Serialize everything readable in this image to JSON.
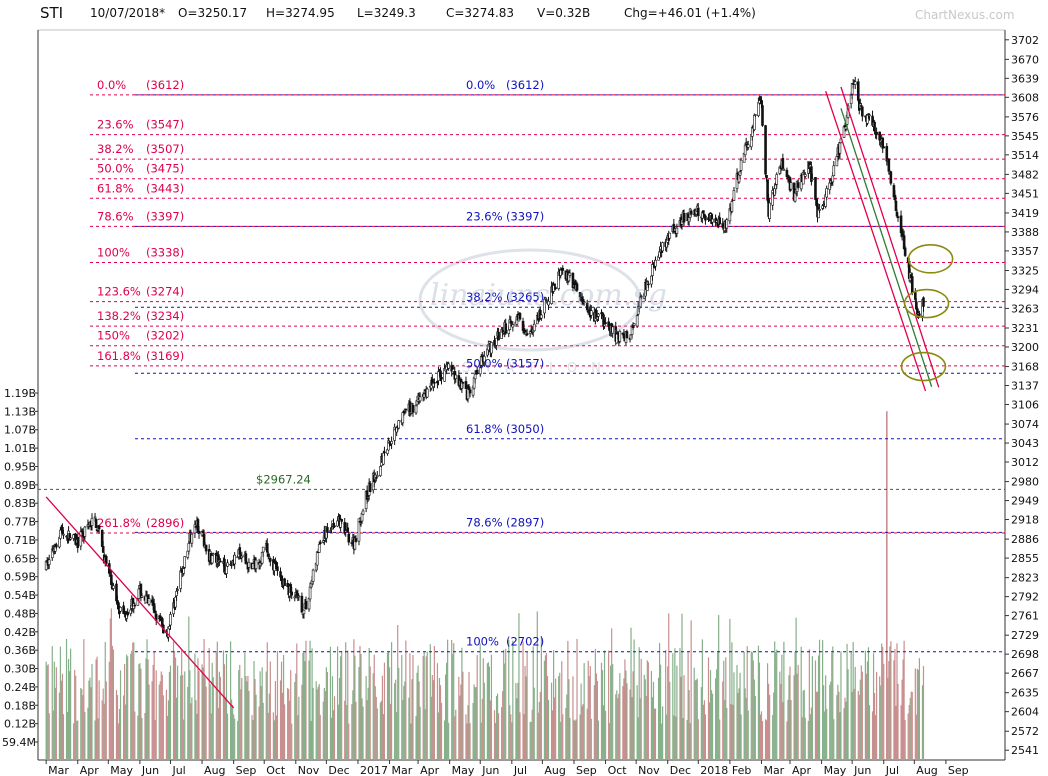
{
  "header": {
    "symbol": "STI",
    "date": "10/07/2018*",
    "open": "O=3250.17",
    "high": "H=3274.95",
    "low": "L=3249.3",
    "close": "C=3274.83",
    "volume": "V=0.32B",
    "change": "Chg=+46.01 (+1.4%)"
  },
  "watermark": "ChartNexus.com",
  "logo_text": "linaiuns.com.sg",
  "logo_sub": "STATION",
  "chart_data": {
    "type": "candlestick",
    "price_axis": {
      "ticks": [
        3702,
        3670,
        3639,
        3608,
        3576,
        3545,
        3514,
        3482,
        3451,
        3419,
        3388,
        3357,
        3325,
        3294,
        3263,
        3231,
        3200,
        3168,
        3137,
        3106,
        3074,
        3043,
        3012,
        2980,
        2949,
        2918,
        2886,
        2855,
        2823,
        2792,
        2761,
        2729,
        2698,
        2667,
        2635,
        2604,
        2572,
        2541
      ],
      "range": [
        2525,
        3718
      ]
    },
    "volume_axis": {
      "ticks": [
        "1.19B",
        "1.13B",
        "1.07B",
        "1.01B",
        "0.95B",
        "0.89B",
        "0.83B",
        "0.77B",
        "0.71B",
        "0.65B",
        "0.59B",
        "0.54B",
        "0.48B",
        "0.42B",
        "0.36B",
        "0.30B",
        "0.24B",
        "0.18B",
        "0.12B",
        "59.4M"
      ],
      "range_billions": [
        0,
        1.22
      ]
    },
    "x_axis": {
      "labels": [
        "Mar",
        "Apr",
        "May",
        "Jun",
        "Jul",
        "Aug",
        "Sep",
        "Oct",
        "Nov",
        "Dec",
        "2017",
        "Mar",
        "Apr",
        "May",
        "Jun",
        "Jul",
        "Aug",
        "Sep",
        "Oct",
        "Nov",
        "Dec",
        "2018",
        "Feb",
        "Mar",
        "Apr",
        "May",
        "Jun",
        "Jul",
        "Aug",
        "Sep"
      ],
      "range": [
        "Mar 2016",
        "Sep 2018"
      ]
    },
    "price_path": [
      [
        "2016-03-01",
        2840
      ],
      [
        "2016-03-15",
        2900
      ],
      [
        "2016-04-01",
        2880
      ],
      [
        "2016-04-18",
        2920
      ],
      [
        "2016-05-01",
        2830
      ],
      [
        "2016-05-15",
        2760
      ],
      [
        "2016-06-01",
        2800
      ],
      [
        "2016-06-15",
        2770
      ],
      [
        "2016-06-27",
        2730
      ],
      [
        "2016-07-15",
        2850
      ],
      [
        "2016-07-25",
        2920
      ],
      [
        "2016-08-08",
        2860
      ],
      [
        "2016-08-22",
        2840
      ],
      [
        "2016-09-05",
        2860
      ],
      [
        "2016-09-19",
        2840
      ],
      [
        "2016-10-03",
        2870
      ],
      [
        "2016-10-17",
        2820
      ],
      [
        "2016-11-01",
        2790
      ],
      [
        "2016-11-10",
        2770
      ],
      [
        "2016-11-25",
        2880
      ],
      [
        "2016-12-10",
        2920
      ],
      [
        "2016-12-28",
        2880
      ],
      [
        "2017-01-10",
        2960
      ],
      [
        "2017-01-25",
        3020
      ],
      [
        "2017-02-10",
        3080
      ],
      [
        "2017-02-28",
        3110
      ],
      [
        "2017-03-15",
        3140
      ],
      [
        "2017-03-31",
        3170
      ],
      [
        "2017-04-20",
        3120
      ],
      [
        "2017-05-05",
        3190
      ],
      [
        "2017-05-20",
        3220
      ],
      [
        "2017-06-05",
        3250
      ],
      [
        "2017-06-20",
        3220
      ],
      [
        "2017-07-01",
        3260
      ],
      [
        "2017-07-20",
        3330
      ],
      [
        "2017-08-05",
        3290
      ],
      [
        "2017-08-15",
        3250
      ],
      [
        "2017-08-25",
        3250
      ],
      [
        "2017-09-10",
        3220
      ],
      [
        "2017-09-25",
        3215
      ],
      [
        "2017-10-05",
        3280
      ],
      [
        "2017-10-20",
        3340
      ],
      [
        "2017-11-03",
        3380
      ],
      [
        "2017-11-15",
        3410
      ],
      [
        "2017-11-30",
        3420
      ],
      [
        "2017-12-15",
        3410
      ],
      [
        "2017-12-30",
        3400
      ],
      [
        "2018-01-10",
        3490
      ],
      [
        "2018-01-20",
        3540
      ],
      [
        "2018-01-31",
        3610
      ],
      [
        "2018-02-08",
        3420
      ],
      [
        "2018-02-20",
        3500
      ],
      [
        "2018-03-05",
        3450
      ],
      [
        "2018-03-20",
        3500
      ],
      [
        "2018-03-28",
        3410
      ],
      [
        "2018-04-10",
        3470
      ],
      [
        "2018-04-25",
        3570
      ],
      [
        "2018-05-03",
        3640
      ],
      [
        "2018-05-08",
        3590
      ],
      [
        "2018-05-20",
        3570
      ],
      [
        "2018-06-01",
        3530
      ],
      [
        "2018-06-12",
        3440
      ],
      [
        "2018-06-25",
        3330
      ],
      [
        "2018-07-05",
        3250
      ],
      [
        "2018-07-10",
        3275
      ]
    ],
    "fibonacci_left": {
      "color": "#e0004a",
      "levels": [
        {
          "label": "0.0%",
          "value": "(3612)",
          "price": 3612
        },
        {
          "label": "23.6%",
          "value": "(3547)",
          "price": 3547
        },
        {
          "label": "38.2%",
          "value": "(3507)",
          "price": 3507
        },
        {
          "label": "50.0%",
          "value": "(3475)",
          "price": 3475
        },
        {
          "label": "61.8%",
          "value": "(3443)",
          "price": 3443
        },
        {
          "label": "78.6%",
          "value": "(3397)",
          "price": 3397
        },
        {
          "label": "100%",
          "value": "(3338)",
          "price": 3338
        },
        {
          "label": "123.6%",
          "value": "(3274)",
          "price": 3274
        },
        {
          "label": "138.2%",
          "value": "(3234)",
          "price": 3234
        },
        {
          "label": "150%",
          "value": "(3202)",
          "price": 3202
        },
        {
          "label": "161.8%",
          "value": "(3169)",
          "price": 3169
        },
        {
          "label": "261.8%",
          "value": "(2896)",
          "price": 2896
        }
      ]
    },
    "fibonacci_right": {
      "color": "#1010c0",
      "levels": [
        {
          "label": "0.0%",
          "value": "(3612)",
          "price": 3612
        },
        {
          "label": "23.6%",
          "value": "(3397)",
          "price": 3397
        },
        {
          "label": "38.2%",
          "value": "(3265)",
          "price": 3265
        },
        {
          "label": "50.0%",
          "value": "(3157)",
          "price": 3157
        },
        {
          "label": "61.8%",
          "value": "(3050)",
          "price": 3050
        },
        {
          "label": "78.6%",
          "value": "(2897)",
          "price": 2897
        },
        {
          "label": "100%",
          "value": "(2702)",
          "price": 2702
        }
      ]
    },
    "marked_level": {
      "label": "$2967.24",
      "price": 2967.24,
      "color": "#2a6a2a"
    },
    "trendlines": [
      {
        "color": "#e0004a",
        "from": [
          "2016-03-01",
          2955
        ],
        "to": [
          "2016-09-01",
          2610
        ]
      },
      {
        "color": "#e0004a",
        "from": [
          "2018-04-05",
          3618
        ],
        "to": [
          "2018-07-12",
          3128
        ]
      },
      {
        "color": "#e0004a",
        "from": [
          "2018-04-20",
          3625
        ],
        "to": [
          "2018-07-25",
          3134
        ]
      },
      {
        "color": "#2e7d32",
        "from": [
          "2018-04-20",
          3590
        ],
        "to": [
          "2018-07-18",
          3135
        ]
      }
    ],
    "circles": [
      {
        "center": [
          "2018-07-17",
          3344
        ]
      },
      {
        "center": [
          "2018-07-13",
          3271
        ]
      },
      {
        "center": [
          "2018-07-10",
          3168
        ]
      }
    ]
  }
}
